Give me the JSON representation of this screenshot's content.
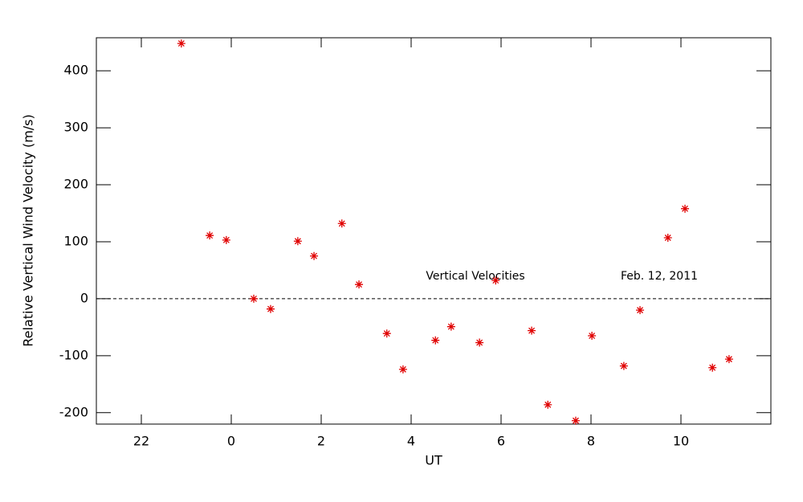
{
  "chart_data": {
    "type": "scatter",
    "xlabel": "UT",
    "ylabel": "Relative Vertical Wind Velocity (m/s)",
    "annotations": [
      "Vertical Velocities",
      "Feb. 12, 2011"
    ],
    "color": "#e00000",
    "reference_line": 0,
    "xlim": [
      -3,
      12
    ],
    "ylim": [
      -220,
      458
    ],
    "xticks": [
      {
        "value": -2,
        "label": "22"
      },
      0,
      2,
      4,
      6,
      8,
      10
    ],
    "yticks": [
      -200,
      -100,
      0,
      100,
      200,
      300,
      400
    ],
    "x": [
      -1.11,
      -0.48,
      -0.11,
      0.5,
      0.875,
      1.48,
      1.84,
      2.46,
      2.84,
      3.46,
      3.82,
      4.54,
      4.89,
      5.52,
      5.88,
      6.68,
      7.04,
      7.66,
      8.02,
      8.73,
      9.09,
      9.71,
      10.09,
      10.7,
      11.07
    ],
    "values": [
      448,
      111,
      103,
      0,
      -18,
      101,
      75,
      132,
      25,
      -61,
      -124,
      -73,
      -49,
      -77,
      32,
      -56,
      -186,
      -214,
      -65,
      -118,
      -20,
      107,
      158,
      -121,
      -106
    ]
  }
}
